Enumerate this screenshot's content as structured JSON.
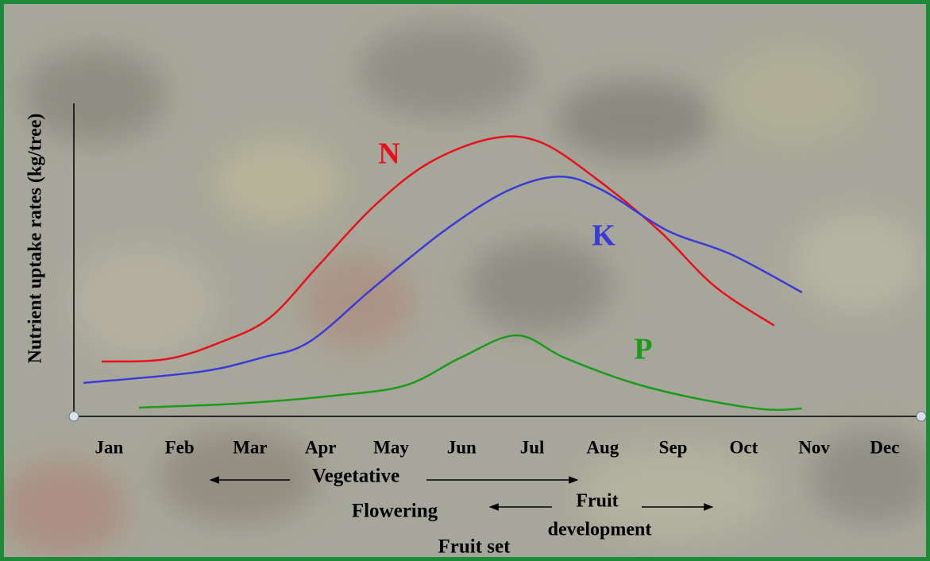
{
  "chart_data": {
    "type": "line",
    "y_axis_label": "Nutrient uptake rates (kg/tree)",
    "categories": [
      "Jan",
      "Feb",
      "Mar",
      "Apr",
      "May",
      "Jun",
      "Jul",
      "Aug",
      "Sep",
      "Oct",
      "Nov",
      "Dec"
    ],
    "xlim": [
      0,
      12.5
    ],
    "ylim": [
      0,
      100
    ],
    "series": [
      {
        "name": "N",
        "color": "#e8101a",
        "x": [
          0.41,
          1.37,
          2.19,
          2.89,
          3.6,
          4.42,
          5.24,
          6.17,
          6.88,
          7.7,
          8.63,
          9.45,
          10.33
        ],
        "values": [
          17.5,
          18.3,
          23.9,
          31.5,
          48,
          67,
          81,
          88.8,
          87.6,
          76,
          59.4,
          41.6,
          29
        ]
      },
      {
        "name": "K",
        "color": "#3a3ad8",
        "x": [
          0.14,
          1.84,
          2.78,
          3.48,
          4.42,
          5.47,
          6.4,
          7.17,
          7.81,
          8.75,
          9.69,
          10.74
        ],
        "values": [
          10.7,
          14.2,
          18.8,
          23.9,
          41.1,
          59.4,
          72.1,
          76.6,
          72.1,
          59.4,
          51.8,
          39.6
        ]
      },
      {
        "name": "P",
        "color": "#1c9a1c",
        "x": [
          0.96,
          2.43,
          3.83,
          4.89,
          5.71,
          6.53,
          7.23,
          8.17,
          9.1,
          10.16,
          10.74
        ],
        "values": [
          2.8,
          4.1,
          6.6,
          9.9,
          18.8,
          25.9,
          18.8,
          11.2,
          6.1,
          2.3,
          2.5
        ]
      }
    ],
    "annotations": [
      "Vegetative",
      "Flowering",
      "Fruit",
      "development",
      "Fruit set"
    ]
  }
}
